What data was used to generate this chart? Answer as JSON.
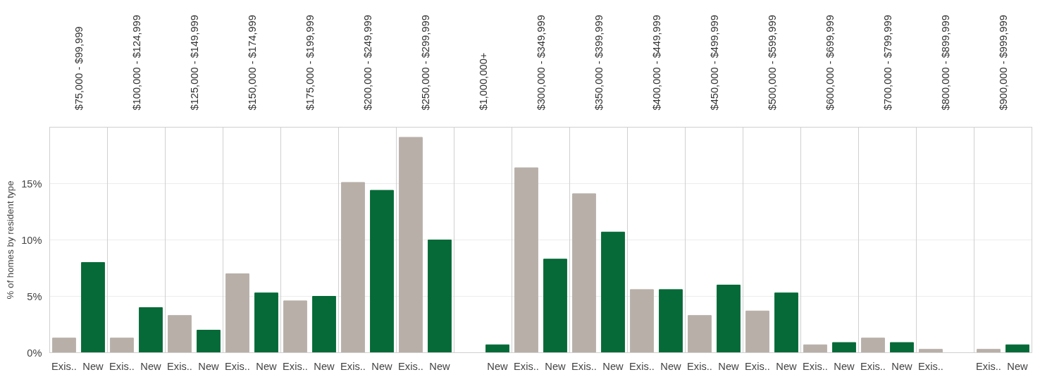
{
  "chart_data": {
    "type": "bar",
    "ylabel": "% of homes by resident type",
    "categories": [
      "$75,000 - $99,999",
      "$100,000 - $124,999",
      "$125,000 - $149,999",
      "$150,000 - $174,999",
      "$175,000 - $199,999",
      "$200,000 - $249,999",
      "$250,000 - $299,999",
      "$1,000,000+",
      "$300,000 - $349,999",
      "$350,000 - $399,999",
      "$400,000 - $449,999",
      "$450,000 - $499,999",
      "$500,000 - $599,999",
      "$600,000 - $699,999",
      "$700,000 - $799,999",
      "$800,000 - $899,999",
      "$900,000 - $999,999"
    ],
    "series": [
      {
        "name": "Exis..",
        "color": "#b8afa9",
        "values": [
          1.3,
          1.3,
          3.3,
          7.0,
          4.6,
          15.1,
          19.1,
          null,
          16.4,
          14.1,
          5.6,
          3.3,
          3.7,
          0.7,
          1.3,
          0.3,
          0.3
        ]
      },
      {
        "name": "New",
        "color": "#066a38",
        "values": [
          8.0,
          4.0,
          2.0,
          5.3,
          5.0,
          14.4,
          10.0,
          0.7,
          8.3,
          10.7,
          5.6,
          6.0,
          5.3,
          0.9,
          0.9,
          null,
          0.7
        ]
      }
    ],
    "ylim": [
      0,
      20
    ],
    "yticks": [
      {
        "value": 0,
        "label": "0%"
      },
      {
        "value": 5,
        "label": "5%"
      },
      {
        "value": 10,
        "label": "10%"
      },
      {
        "value": 15,
        "label": "15%"
      }
    ],
    "grid": "y"
  }
}
